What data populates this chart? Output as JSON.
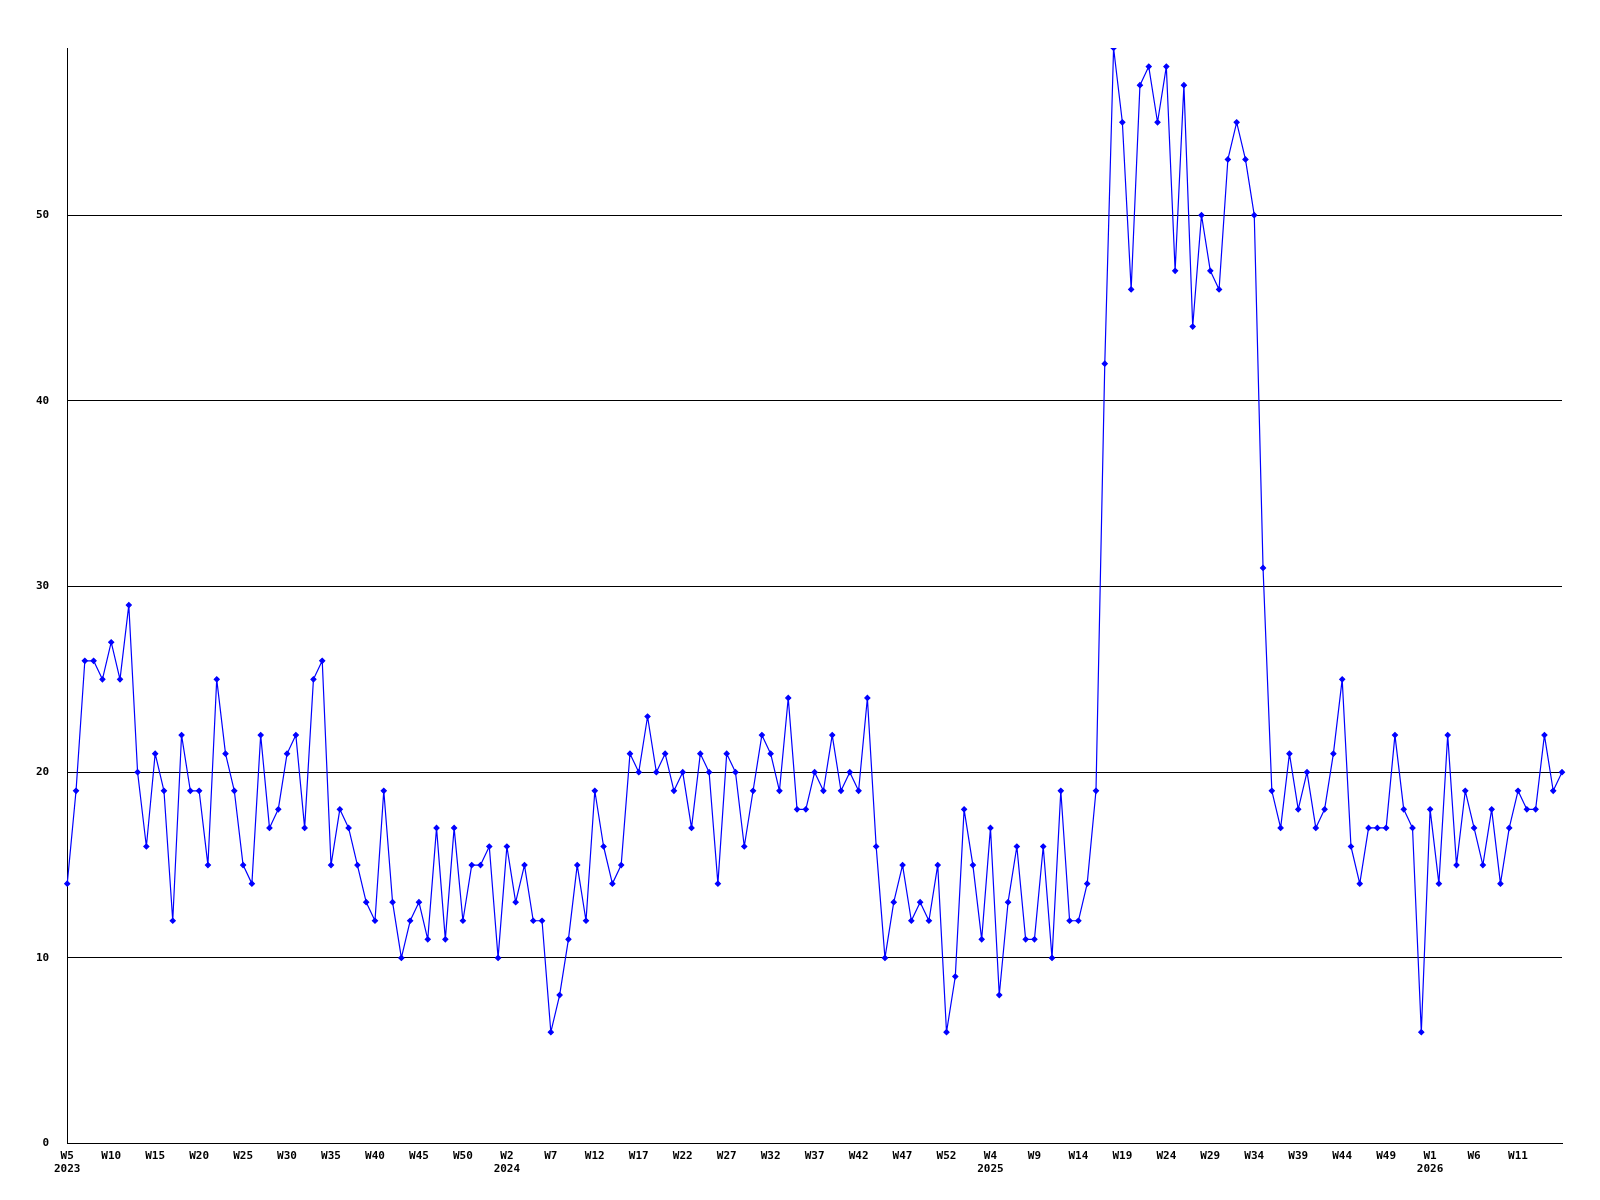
{
  "chart_data": {
    "type": "line",
    "categories": [
      "W5\n2023",
      null,
      null,
      null,
      null,
      "W10",
      null,
      null,
      null,
      null,
      "W15",
      null,
      null,
      null,
      null,
      "W20",
      null,
      null,
      null,
      null,
      "W25",
      null,
      null,
      null,
      null,
      "W30",
      null,
      null,
      null,
      null,
      "W35",
      null,
      null,
      null,
      null,
      "W40",
      null,
      null,
      null,
      null,
      "W45",
      null,
      null,
      null,
      null,
      "W50",
      null,
      null,
      null,
      null,
      "W2\n2024",
      null,
      null,
      null,
      null,
      "W7",
      null,
      null,
      null,
      null,
      "W12",
      null,
      null,
      null,
      null,
      "W17",
      null,
      null,
      null,
      null,
      "W22",
      null,
      null,
      null,
      null,
      "W27",
      null,
      null,
      null,
      null,
      "W32",
      null,
      null,
      null,
      null,
      "W37",
      null,
      null,
      null,
      null,
      "W42",
      null,
      null,
      null,
      null,
      "W47",
      null,
      null,
      null,
      null,
      "W52",
      null,
      null,
      null,
      null,
      "W4\n2025",
      null,
      null,
      null,
      null,
      "W9",
      null,
      null,
      null,
      null,
      "W14",
      null,
      null,
      null,
      null,
      "W19",
      null,
      null,
      null,
      null,
      "W24",
      null,
      null,
      null,
      null,
      "W29",
      null,
      null,
      null,
      null,
      "W34",
      null,
      null,
      null,
      null,
      "W39",
      null,
      null,
      null,
      null,
      "W44",
      null,
      null,
      null,
      null,
      "W49",
      null,
      null,
      null,
      null,
      "W1\n2026",
      null,
      null,
      null,
      null,
      "W6",
      null,
      null,
      null,
      null,
      "W11",
      null,
      null,
      null,
      null,
      null
    ],
    "series": [
      {
        "color": "#0000ff",
        "values": [
          14,
          19,
          26,
          26,
          25,
          27,
          25,
          29,
          20,
          16,
          21,
          19,
          12,
          22,
          19,
          19,
          15,
          25,
          21,
          19,
          15,
          14,
          22,
          17,
          18,
          21,
          22,
          17,
          25,
          26,
          15,
          18,
          17,
          15,
          13,
          12,
          19,
          13,
          10,
          12,
          13,
          11,
          17,
          11,
          17,
          12,
          15,
          15,
          16,
          10,
          16,
          13,
          15,
          12,
          12,
          6,
          8,
          11,
          15,
          12,
          19,
          16,
          14,
          15,
          21,
          20,
          23,
          20,
          21,
          19,
          20,
          17,
          21,
          20,
          14,
          21,
          20,
          16,
          19,
          22,
          21,
          19,
          24,
          18,
          18,
          20,
          19,
          22,
          19,
          20,
          19,
          24,
          16,
          10,
          13,
          15,
          12,
          13,
          12,
          15,
          6,
          9,
          18,
          15,
          11,
          17,
          8,
          13,
          16,
          11,
          11,
          16,
          10,
          19,
          12,
          12,
          14,
          19,
          42,
          59,
          55,
          46,
          57,
          58,
          55,
          58,
          47,
          57,
          44,
          50,
          47,
          46,
          53,
          55,
          53,
          50,
          31,
          19,
          17,
          21,
          18,
          20,
          17,
          18,
          21,
          25,
          16,
          14,
          17,
          17,
          17,
          22,
          18,
          17,
          6,
          18,
          14,
          22,
          15,
          19,
          17,
          15,
          18,
          14,
          17,
          19,
          18,
          18,
          22,
          19,
          20
        ]
      }
    ],
    "ylim": [
      0,
      59
    ],
    "yticks": [
      0,
      10,
      20,
      30,
      40,
      50
    ],
    "grid": "y",
    "marker": "diamond",
    "line_style": "solid",
    "legend": false
  }
}
